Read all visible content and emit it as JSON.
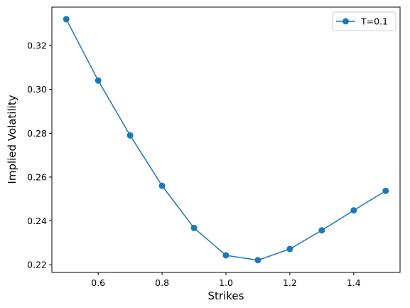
{
  "chart_data": {
    "type": "line",
    "title": "",
    "xlabel": "Strikes",
    "ylabel": "Implied Volatility",
    "xlim": [
      0.455,
      1.545
    ],
    "ylim": [
      0.2165,
      0.3375
    ],
    "xticks": [
      0.6,
      0.8,
      1.0,
      1.2,
      1.4
    ],
    "xtick_labels": [
      "0.6",
      "0.8",
      "1.0",
      "1.2",
      "1.4"
    ],
    "yticks": [
      0.22,
      0.24,
      0.26,
      0.28,
      0.3,
      0.32
    ],
    "ytick_labels": [
      "0.22",
      "0.24",
      "0.26",
      "0.28",
      "0.30",
      "0.32"
    ],
    "grid": false,
    "legend": {
      "position": "top-right"
    },
    "series": [
      {
        "name": "T=0.1",
        "color": "#1f77b4",
        "marker": "circle",
        "x": [
          0.5,
          0.6,
          0.7,
          0.8,
          0.9,
          1.0,
          1.1,
          1.2,
          1.3,
          1.4,
          1.5
        ],
        "y": [
          0.332,
          0.304,
          0.279,
          0.256,
          0.2368,
          0.2243,
          0.2221,
          0.2272,
          0.2357,
          0.2448,
          0.2537
        ]
      }
    ]
  }
}
